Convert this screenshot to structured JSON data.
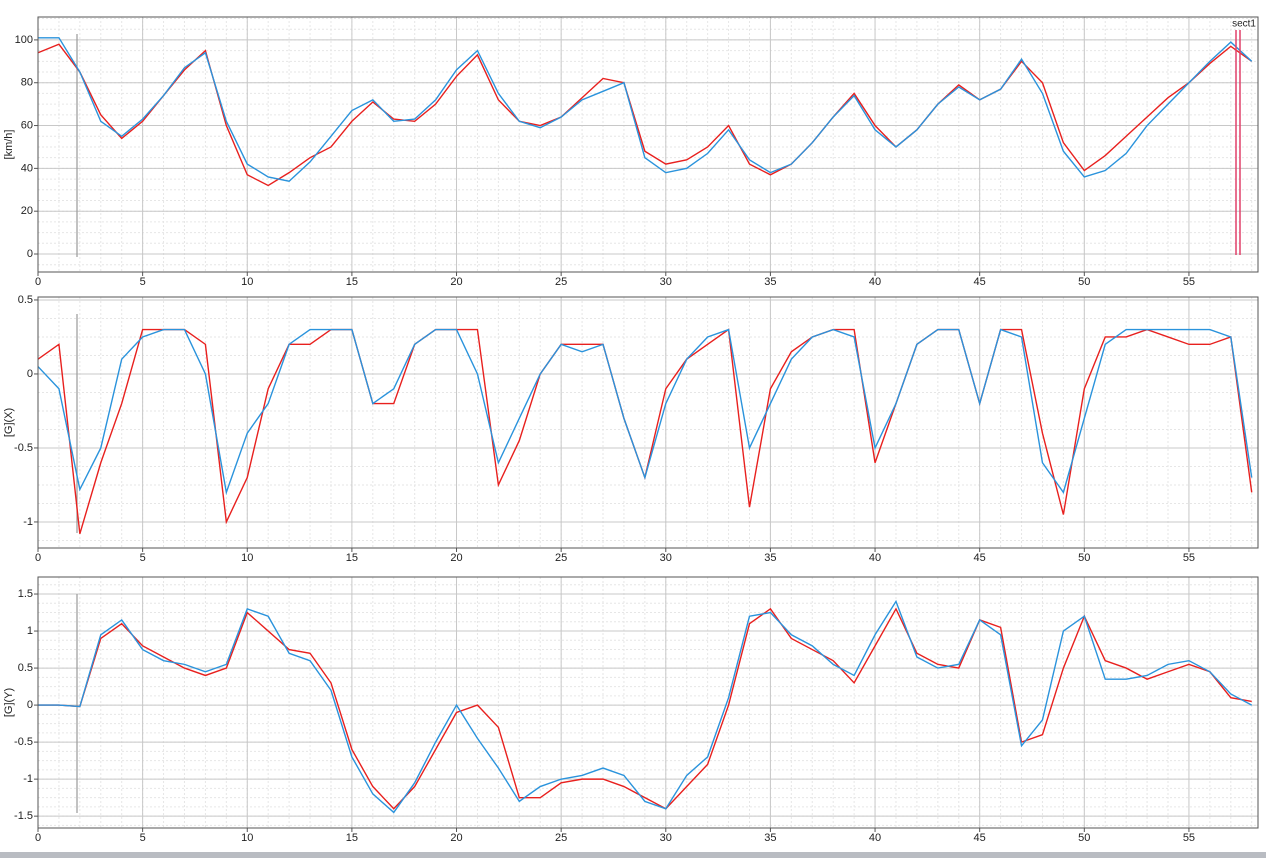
{
  "chart_data": [
    {
      "type": "line",
      "y_label": "[km/h]",
      "annotation": "sect1",
      "grid": true,
      "xlim": [
        0,
        58.3
      ],
      "ylim": [
        -8.4,
        110.7
      ],
      "xticks": [
        0,
        5,
        10,
        15,
        20,
        25,
        30,
        35,
        40,
        45,
        50,
        55
      ],
      "yticks": [
        0,
        20,
        40,
        60,
        80,
        100
      ],
      "x": [
        0,
        1,
        2,
        3,
        4,
        5,
        6,
        7,
        8,
        9,
        10,
        11,
        12,
        13,
        14,
        15,
        16,
        17,
        18,
        19,
        20,
        21,
        22,
        23,
        24,
        25,
        26,
        27,
        28,
        29,
        30,
        31,
        32,
        33,
        34,
        35,
        36,
        37,
        38,
        39,
        40,
        41,
        42,
        43,
        44,
        45,
        46,
        47,
        48,
        49,
        50,
        51,
        52,
        53,
        54,
        55,
        56,
        57,
        58
      ],
      "series": [
        {
          "color": "#e8201e",
          "values": [
            94,
            98,
            85,
            65,
            54,
            62,
            74,
            86,
            95,
            60,
            37,
            32,
            38,
            45,
            50,
            62,
            71,
            63,
            62,
            70,
            83,
            93,
            72,
            62,
            60,
            64,
            73,
            82,
            80,
            48,
            42,
            44,
            50,
            60,
            42,
            37,
            42,
            52,
            64,
            75,
            60,
            50,
            58,
            70,
            79,
            72,
            77,
            90,
            80,
            52,
            39,
            46,
            55,
            64,
            73,
            80,
            89,
            97,
            90
          ]
        },
        {
          "color": "#2a93dc",
          "values": [
            101,
            101,
            85,
            62,
            55,
            63,
            74,
            87,
            94,
            62,
            42,
            36,
            34,
            43,
            55,
            67,
            72,
            62,
            63,
            72,
            86,
            95,
            75,
            62,
            59,
            64,
            72,
            76,
            80,
            45,
            38,
            40,
            47,
            58,
            44,
            38,
            42,
            52,
            64,
            74,
            58,
            50,
            58,
            70,
            78,
            72,
            77,
            91,
            75,
            48,
            36,
            39,
            47,
            60,
            70,
            80,
            90,
            99,
            90
          ]
        }
      ]
    },
    {
      "type": "line",
      "y_label": "[G](X)",
      "grid": true,
      "xlim": [
        0,
        58.3
      ],
      "ylim": [
        -1.176,
        0.52
      ],
      "xticks": [
        0,
        5,
        10,
        15,
        20,
        25,
        30,
        35,
        40,
        45,
        50,
        55
      ],
      "yticks": [
        -1,
        -0.5,
        0,
        0.5
      ],
      "x": [
        0,
        1,
        2,
        3,
        4,
        5,
        6,
        7,
        8,
        9,
        10,
        11,
        12,
        13,
        14,
        15,
        16,
        17,
        18,
        19,
        20,
        21,
        22,
        23,
        24,
        25,
        26,
        27,
        28,
        29,
        30,
        31,
        32,
        33,
        34,
        35,
        36,
        37,
        38,
        39,
        40,
        41,
        42,
        43,
        44,
        45,
        46,
        47,
        48,
        49,
        50,
        51,
        52,
        53,
        54,
        55,
        56,
        57,
        58
      ],
      "series": [
        {
          "color": "#e8201e",
          "values": [
            0.1,
            0.2,
            -1.08,
            -0.6,
            -0.2,
            0.3,
            0.3,
            0.3,
            0.2,
            -1.0,
            -0.7,
            -0.1,
            0.2,
            0.2,
            0.3,
            0.3,
            -0.2,
            -0.2,
            0.2,
            0.3,
            0.3,
            0.3,
            -0.75,
            -0.45,
            0.0,
            0.2,
            0.2,
            0.2,
            -0.3,
            -0.7,
            -0.1,
            0.1,
            0.2,
            0.3,
            -0.9,
            -0.1,
            0.15,
            0.25,
            0.3,
            0.3,
            -0.6,
            -0.2,
            0.2,
            0.3,
            0.3,
            -0.2,
            0.3,
            0.3,
            -0.4,
            -0.95,
            -0.1,
            0.25,
            0.25,
            0.3,
            0.25,
            0.2,
            0.2,
            0.25,
            -0.8
          ]
        },
        {
          "color": "#2a93dc",
          "values": [
            0.05,
            -0.1,
            -0.78,
            -0.5,
            0.1,
            0.25,
            0.3,
            0.3,
            0.0,
            -0.8,
            -0.4,
            -0.2,
            0.2,
            0.3,
            0.3,
            0.3,
            -0.2,
            -0.1,
            0.2,
            0.3,
            0.3,
            0.0,
            -0.6,
            -0.3,
            0.0,
            0.2,
            0.15,
            0.2,
            -0.3,
            -0.7,
            -0.2,
            0.1,
            0.25,
            0.3,
            -0.5,
            -0.2,
            0.1,
            0.25,
            0.3,
            0.25,
            -0.5,
            -0.2,
            0.2,
            0.3,
            0.3,
            -0.2,
            0.3,
            0.25,
            -0.6,
            -0.8,
            -0.3,
            0.2,
            0.3,
            0.3,
            0.3,
            0.3,
            0.3,
            0.25,
            -0.7
          ]
        }
      ]
    },
    {
      "type": "line",
      "y_label": "[G](Y)",
      "grid": true,
      "xlim": [
        0,
        58.3
      ],
      "ylim": [
        -1.66,
        1.73
      ],
      "xticks": [
        0,
        5,
        10,
        15,
        20,
        25,
        30,
        35,
        40,
        45,
        50,
        55
      ],
      "yticks": [
        -1.5,
        -1,
        -0.5,
        0,
        0.5,
        1,
        1.5
      ],
      "x": [
        0,
        1,
        2,
        3,
        4,
        5,
        6,
        7,
        8,
        9,
        10,
        11,
        12,
        13,
        14,
        15,
        16,
        17,
        18,
        19,
        20,
        21,
        22,
        23,
        24,
        25,
        26,
        27,
        28,
        29,
        30,
        31,
        32,
        33,
        34,
        35,
        36,
        37,
        38,
        39,
        40,
        41,
        42,
        43,
        44,
        45,
        46,
        47,
        48,
        49,
        50,
        51,
        52,
        53,
        54,
        55,
        56,
        57,
        58
      ],
      "series": [
        {
          "color": "#e8201e",
          "values": [
            0,
            0,
            -0.02,
            0.9,
            1.1,
            0.8,
            0.65,
            0.5,
            0.4,
            0.5,
            1.25,
            1.0,
            0.75,
            0.7,
            0.3,
            -0.6,
            -1.1,
            -1.4,
            -1.1,
            -0.6,
            -0.1,
            0,
            -0.3,
            -1.25,
            -1.25,
            -1.05,
            -1.0,
            -1.0,
            -1.1,
            -1.25,
            -1.4,
            -1.1,
            -0.8,
            0.0,
            1.1,
            1.3,
            0.9,
            0.75,
            0.6,
            0.3,
            0.8,
            1.3,
            0.7,
            0.55,
            0.5,
            1.15,
            1.05,
            -0.5,
            -0.4,
            0.5,
            1.2,
            0.6,
            0.5,
            0.35,
            0.45,
            0.55,
            0.45,
            0.1,
            0.05
          ]
        },
        {
          "color": "#2a93dc",
          "values": [
            0,
            0,
            -0.02,
            0.95,
            1.15,
            0.75,
            0.6,
            0.55,
            0.45,
            0.55,
            1.3,
            1.2,
            0.7,
            0.6,
            0.2,
            -0.7,
            -1.2,
            -1.45,
            -1.05,
            -0.5,
            0.0,
            -0.45,
            -0.85,
            -1.3,
            -1.1,
            -1.0,
            -0.95,
            -0.85,
            -0.95,
            -1.3,
            -1.4,
            -0.95,
            -0.7,
            0.1,
            1.2,
            1.25,
            0.95,
            0.8,
            0.55,
            0.4,
            0.95,
            1.4,
            0.65,
            0.5,
            0.55,
            1.15,
            0.95,
            -0.55,
            -0.2,
            1.0,
            1.2,
            0.35,
            0.35,
            0.4,
            0.55,
            0.6,
            0.45,
            0.15,
            0.0
          ]
        }
      ]
    }
  ]
}
